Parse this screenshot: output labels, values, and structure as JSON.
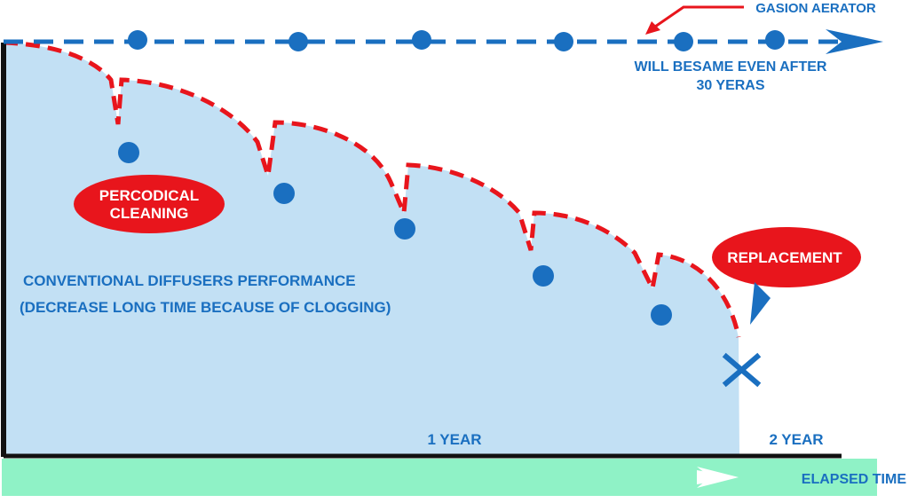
{
  "colors": {
    "area_fill": "#c2e0f4",
    "blue": "#1a6fc0",
    "red": "#e8151c",
    "time_bar": "#8ff2c6",
    "axis": "#111111",
    "white": "#ffffff"
  },
  "labels": {
    "gasion_aerator": "GASION AERATOR",
    "same_line1": "WILL BESAME EVEN AFTER",
    "same_line2": "30 YERAS",
    "periodic_line1": "PERCODICAL",
    "periodic_line2": "CLEANING",
    "conventional_line1": "CONVENTIONAL DIFFUSERS PERFORMANCE",
    "conventional_line2": "(DECREASE LONG TIME BECAUSE OF CLOGGING)",
    "replacement": "REPLACEMENT",
    "one_year": "1 YEAR",
    "two_year": "2 YEAR",
    "elapsed_time": "ELAPSED TIME"
  },
  "icons": {
    "replacement_marker": "x-cross-icon",
    "time_arrow": "arrow-right-icon",
    "aerator_arrow": "arrow-right-icon"
  }
}
